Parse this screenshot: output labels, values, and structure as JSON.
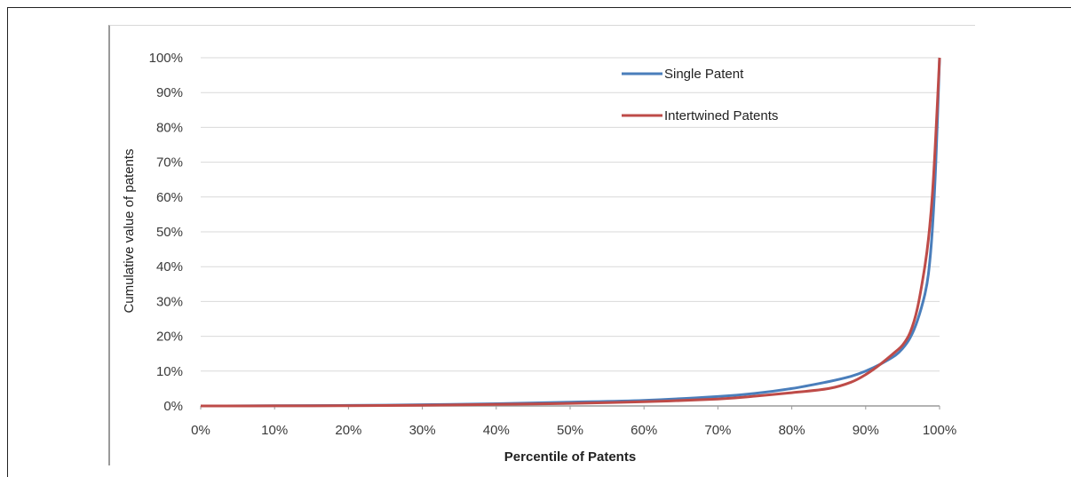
{
  "chart_data": {
    "type": "line",
    "title": "",
    "xlabel": "Percentile of Patents",
    "ylabel": "Cumulative value of patents",
    "xlim": [
      0,
      100
    ],
    "ylim": [
      0,
      100
    ],
    "x_ticks": [
      "0%",
      "10%",
      "20%",
      "30%",
      "40%",
      "50%",
      "60%",
      "70%",
      "80%",
      "90%",
      "100%"
    ],
    "y_ticks": [
      "0%",
      "10%",
      "20%",
      "30%",
      "40%",
      "50%",
      "60%",
      "70%",
      "80%",
      "90%",
      "100%"
    ],
    "grid": "horizontal",
    "legend_position": "top-right",
    "series": [
      {
        "name": "Single Patent",
        "color": "#4a7ebb",
        "points": [
          [
            0,
            0
          ],
          [
            10,
            0.05
          ],
          [
            20,
            0.15
          ],
          [
            30,
            0.35
          ],
          [
            40,
            0.65
          ],
          [
            50,
            1.1
          ],
          [
            60,
            1.6
          ],
          [
            70,
            2.7
          ],
          [
            75,
            3.6
          ],
          [
            80,
            5.0
          ],
          [
            85,
            7.0
          ],
          [
            88,
            8.5
          ],
          [
            90,
            10.0
          ],
          [
            92,
            12.0
          ],
          [
            94,
            14.5
          ],
          [
            95,
            16.5
          ],
          [
            96,
            19.5
          ],
          [
            97,
            24.5
          ],
          [
            98,
            32.0
          ],
          [
            98.5,
            38.0
          ],
          [
            99,
            50.0
          ],
          [
            99.5,
            70.0
          ],
          [
            100,
            100
          ]
        ]
      },
      {
        "name": "Intertwined Patents",
        "color": "#be4b48",
        "points": [
          [
            0,
            0
          ],
          [
            10,
            0.02
          ],
          [
            20,
            0.08
          ],
          [
            30,
            0.2
          ],
          [
            40,
            0.45
          ],
          [
            50,
            0.75
          ],
          [
            60,
            1.2
          ],
          [
            70,
            2.0
          ],
          [
            75,
            2.8
          ],
          [
            80,
            3.8
          ],
          [
            85,
            5.0
          ],
          [
            88,
            6.8
          ],
          [
            90,
            9.0
          ],
          [
            92,
            12.0
          ],
          [
            94,
            15.5
          ],
          [
            95,
            17.5
          ],
          [
            96,
            21.0
          ],
          [
            97,
            28.0
          ],
          [
            98,
            40.0
          ],
          [
            98.5,
            48.0
          ],
          [
            99,
            60.0
          ],
          [
            99.5,
            78.0
          ],
          [
            100,
            100
          ]
        ]
      }
    ]
  }
}
